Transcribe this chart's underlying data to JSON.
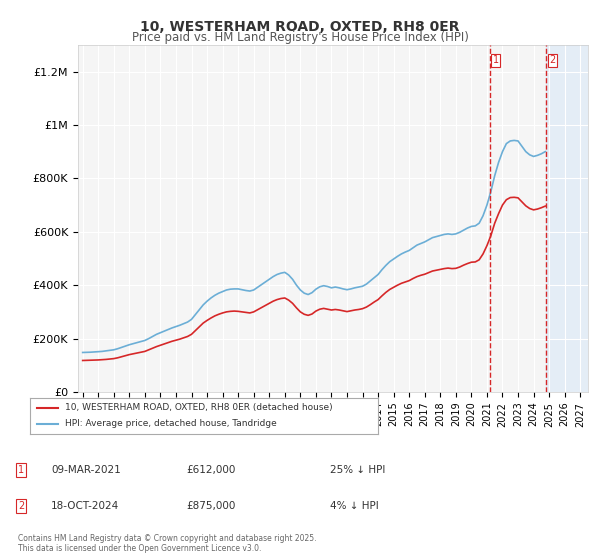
{
  "title": "10, WESTERHAM ROAD, OXTED, RH8 0ER",
  "subtitle": "Price paid vs. HM Land Registry's House Price Index (HPI)",
  "ylabel_ticks": [
    "£0",
    "£200K",
    "£400K",
    "£600K",
    "£800K",
    "£1M",
    "£1.2M"
  ],
  "ytick_values": [
    0,
    200000,
    400000,
    600000,
    800000,
    1000000,
    1200000
  ],
  "ylim": [
    0,
    1300000
  ],
  "xlim_min": 1995.0,
  "xlim_max": 2027.5,
  "xlabel_years": [
    1995,
    1996,
    1997,
    1998,
    1999,
    2000,
    2001,
    2002,
    2003,
    2004,
    2005,
    2006,
    2007,
    2008,
    2009,
    2010,
    2011,
    2012,
    2013,
    2014,
    2015,
    2016,
    2017,
    2018,
    2019,
    2020,
    2021,
    2022,
    2023,
    2024,
    2025,
    2026,
    2027
  ],
  "hpi_color": "#6baed6",
  "price_color": "#d62728",
  "shaded_color": "#deebf7",
  "transaction1_x": 2021.18,
  "transaction2_x": 2024.79,
  "transaction1_price": 612000,
  "transaction2_price": 875000,
  "transaction1_label": "1",
  "transaction2_label": "2",
  "transaction1_date": "09-MAR-2021",
  "transaction2_date": "18-OCT-2024",
  "transaction1_hpi_pct": "25% ↓ HPI",
  "transaction2_hpi_pct": "4% ↓ HPI",
  "legend_label_red": "10, WESTERHAM ROAD, OXTED, RH8 0ER (detached house)",
  "legend_label_blue": "HPI: Average price, detached house, Tandridge",
  "footnote": "Contains HM Land Registry data © Crown copyright and database right 2025.\nThis data is licensed under the Open Government Licence v3.0.",
  "bg_color": "#ffffff",
  "plot_bg_color": "#f5f5f5",
  "grid_color": "#ffffff",
  "hpi_data_x": [
    1995.0,
    1995.25,
    1995.5,
    1995.75,
    1996.0,
    1996.25,
    1996.5,
    1996.75,
    1997.0,
    1997.25,
    1997.5,
    1997.75,
    1998.0,
    1998.25,
    1998.5,
    1998.75,
    1999.0,
    1999.25,
    1999.5,
    1999.75,
    2000.0,
    2000.25,
    2000.5,
    2000.75,
    2001.0,
    2001.25,
    2001.5,
    2001.75,
    2002.0,
    2002.25,
    2002.5,
    2002.75,
    2003.0,
    2003.25,
    2003.5,
    2003.75,
    2004.0,
    2004.25,
    2004.5,
    2004.75,
    2005.0,
    2005.25,
    2005.5,
    2005.75,
    2006.0,
    2006.25,
    2006.5,
    2006.75,
    2007.0,
    2007.25,
    2007.5,
    2007.75,
    2008.0,
    2008.25,
    2008.5,
    2008.75,
    2009.0,
    2009.25,
    2009.5,
    2009.75,
    2010.0,
    2010.25,
    2010.5,
    2010.75,
    2011.0,
    2011.25,
    2011.5,
    2011.75,
    2012.0,
    2012.25,
    2012.5,
    2012.75,
    2013.0,
    2013.25,
    2013.5,
    2013.75,
    2014.0,
    2014.25,
    2014.5,
    2014.75,
    2015.0,
    2015.25,
    2015.5,
    2015.75,
    2016.0,
    2016.25,
    2016.5,
    2016.75,
    2017.0,
    2017.25,
    2017.5,
    2017.75,
    2018.0,
    2018.25,
    2018.5,
    2018.75,
    2019.0,
    2019.25,
    2019.5,
    2019.75,
    2020.0,
    2020.25,
    2020.5,
    2020.75,
    2021.0,
    2021.25,
    2021.5,
    2021.75,
    2022.0,
    2022.25,
    2022.5,
    2022.75,
    2023.0,
    2023.25,
    2023.5,
    2023.75,
    2024.0,
    2024.25,
    2024.5,
    2024.75
  ],
  "hpi_data_y": [
    148000,
    148500,
    149000,
    150000,
    151000,
    152000,
    154000,
    156000,
    158000,
    162000,
    167000,
    172000,
    177000,
    181000,
    185000,
    189000,
    193000,
    200000,
    208000,
    216000,
    222000,
    228000,
    234000,
    240000,
    245000,
    250000,
    256000,
    262000,
    272000,
    290000,
    308000,
    326000,
    340000,
    352000,
    362000,
    370000,
    376000,
    382000,
    385000,
    386000,
    386000,
    383000,
    380000,
    378000,
    382000,
    392000,
    402000,
    412000,
    422000,
    432000,
    440000,
    445000,
    448000,
    438000,
    422000,
    400000,
    382000,
    370000,
    365000,
    372000,
    385000,
    394000,
    398000,
    395000,
    390000,
    393000,
    390000,
    386000,
    383000,
    386000,
    390000,
    393000,
    396000,
    404000,
    416000,
    428000,
    440000,
    458000,
    474000,
    488000,
    498000,
    508000,
    517000,
    524000,
    530000,
    540000,
    550000,
    556000,
    562000,
    570000,
    578000,
    582000,
    586000,
    590000,
    592000,
    590000,
    592000,
    598000,
    606000,
    614000,
    620000,
    622000,
    632000,
    660000,
    700000,
    750000,
    810000,
    860000,
    900000,
    930000,
    940000,
    942000,
    940000,
    920000,
    900000,
    888000,
    882000,
    886000,
    892000,
    900000
  ],
  "price_data_x": [
    1995.0,
    1995.25,
    1995.5,
    1995.75,
    1996.0,
    1996.25,
    1996.5,
    1996.75,
    1997.0,
    1997.25,
    1997.5,
    1997.75,
    1998.0,
    1998.25,
    1998.5,
    1998.75,
    1999.0,
    1999.25,
    1999.5,
    1999.75,
    2000.0,
    2000.25,
    2000.5,
    2000.75,
    2001.0,
    2001.25,
    2001.5,
    2001.75,
    2002.0,
    2002.25,
    2002.5,
    2002.75,
    2003.0,
    2003.25,
    2003.5,
    2003.75,
    2004.0,
    2004.25,
    2004.5,
    2004.75,
    2005.0,
    2005.25,
    2005.5,
    2005.75,
    2006.0,
    2006.25,
    2006.5,
    2006.75,
    2007.0,
    2007.25,
    2007.5,
    2007.75,
    2008.0,
    2008.25,
    2008.5,
    2008.75,
    2009.0,
    2009.25,
    2009.5,
    2009.75,
    2010.0,
    2010.25,
    2010.5,
    2010.75,
    2011.0,
    2011.25,
    2011.5,
    2011.75,
    2012.0,
    2012.25,
    2012.5,
    2012.75,
    2013.0,
    2013.25,
    2013.5,
    2013.75,
    2014.0,
    2014.25,
    2014.5,
    2014.75,
    2015.0,
    2015.25,
    2015.5,
    2015.75,
    2016.0,
    2016.25,
    2016.5,
    2016.75,
    2017.0,
    2017.25,
    2017.5,
    2017.75,
    2018.0,
    2018.25,
    2018.5,
    2018.75,
    2019.0,
    2019.25,
    2019.5,
    2019.75,
    2020.0,
    2020.25,
    2020.5,
    2020.75,
    2021.0,
    2021.25,
    2021.5,
    2021.75,
    2022.0,
    2022.25,
    2022.5,
    2022.75,
    2023.0,
    2023.25,
    2023.5,
    2023.75,
    2024.0,
    2024.25,
    2024.5,
    2024.75
  ],
  "price_data_y": [
    118000,
    118500,
    119000,
    119500,
    120000,
    121000,
    122000,
    123500,
    125000,
    128000,
    132000,
    136000,
    140000,
    143000,
    146000,
    149000,
    152000,
    158000,
    164000,
    170000,
    175000,
    180000,
    185000,
    190000,
    194000,
    198000,
    203000,
    208000,
    216000,
    230000,
    244000,
    258000,
    268000,
    277000,
    285000,
    291000,
    296000,
    300000,
    302000,
    303000,
    302000,
    300000,
    298000,
    296000,
    300000,
    308000,
    316000,
    324000,
    332000,
    340000,
    346000,
    350000,
    352000,
    344000,
    332000,
    315000,
    300000,
    291000,
    287000,
    292000,
    303000,
    310000,
    313000,
    310000,
    307000,
    309000,
    307000,
    304000,
    301000,
    304000,
    307000,
    309000,
    312000,
    318000,
    327000,
    337000,
    346000,
    360000,
    373000,
    384000,
    392000,
    400000,
    407000,
    412000,
    417000,
    425000,
    432000,
    437000,
    441000,
    447000,
    453000,
    456000,
    459000,
    462000,
    464000,
    462000,
    463000,
    468000,
    475000,
    481000,
    486000,
    487000,
    495000,
    517000,
    548000,
    585000,
    632000,
    668000,
    700000,
    720000,
    728000,
    729000,
    727000,
    712000,
    697000,
    687000,
    682000,
    685000,
    690000,
    696000
  ]
}
